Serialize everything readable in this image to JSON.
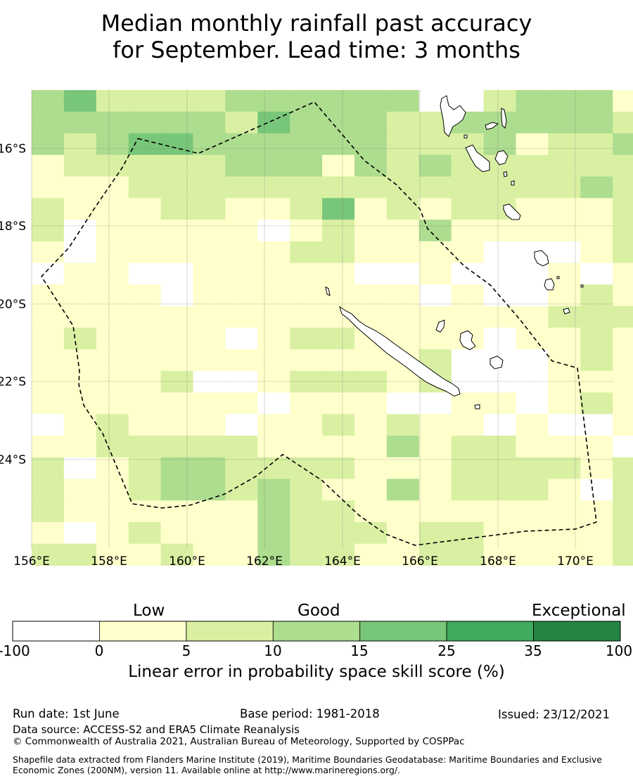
{
  "title": {
    "line1": "Median monthly rainfall past accuracy",
    "line2": "for September. Lead time: 3 months"
  },
  "map": {
    "x_ticks": [
      "156°E",
      "158°E",
      "160°E",
      "162°E",
      "164°E",
      "166°E",
      "168°E",
      "170°E"
    ],
    "y_ticks": [
      "16°S",
      "18°S",
      "20°S",
      "22°S",
      "24°S"
    ],
    "colors": [
      "#ffffff",
      "#ffffcc",
      "#d9f0a3",
      "#addd8e",
      "#78c679",
      "#41ab5d",
      "#238443"
    ],
    "grid": [
      [
        3,
        4,
        2,
        2,
        2,
        2,
        3,
        3,
        3,
        3,
        3,
        3,
        0,
        0,
        2,
        3,
        3,
        3,
        1
      ],
      [
        3,
        3,
        3,
        3,
        3,
        3,
        2,
        4,
        3,
        3,
        3,
        2,
        2,
        3,
        3,
        3,
        3,
        3,
        2
      ],
      [
        3,
        2,
        3,
        4,
        4,
        3,
        3,
        3,
        3,
        3,
        3,
        2,
        2,
        2,
        3,
        1,
        2,
        2,
        3
      ],
      [
        1,
        2,
        2,
        2,
        2,
        2,
        3,
        3,
        3,
        1,
        3,
        2,
        3,
        2,
        2,
        2,
        2,
        2,
        2
      ],
      [
        1,
        1,
        1,
        2,
        2,
        2,
        2,
        2,
        2,
        2,
        2,
        2,
        2,
        2,
        2,
        2,
        2,
        3,
        2
      ],
      [
        2,
        1,
        1,
        1,
        2,
        2,
        1,
        1,
        2,
        4,
        1,
        2,
        1,
        2,
        2,
        1,
        1,
        1,
        2
      ],
      [
        2,
        0,
        1,
        1,
        1,
        1,
        1,
        0,
        1,
        2,
        1,
        1,
        3,
        1,
        1,
        1,
        1,
        1,
        2
      ],
      [
        1,
        0,
        1,
        1,
        1,
        1,
        1,
        1,
        2,
        2,
        1,
        1,
        1,
        1,
        0,
        0,
        0,
        1,
        2
      ],
      [
        0,
        1,
        1,
        0,
        0,
        1,
        1,
        1,
        1,
        1,
        0,
        0,
        1,
        0,
        0,
        0,
        1,
        0,
        1
      ],
      [
        1,
        1,
        1,
        1,
        0,
        1,
        1,
        1,
        1,
        1,
        1,
        1,
        0,
        1,
        0,
        0,
        1,
        2,
        1
      ],
      [
        1,
        1,
        1,
        1,
        1,
        1,
        1,
        1,
        1,
        1,
        1,
        1,
        1,
        1,
        1,
        1,
        2,
        2,
        2
      ],
      [
        1,
        2,
        1,
        1,
        1,
        1,
        0,
        1,
        2,
        2,
        1,
        1,
        1,
        1,
        0,
        1,
        1,
        2,
        1
      ],
      [
        1,
        1,
        1,
        1,
        1,
        1,
        1,
        1,
        1,
        1,
        1,
        1,
        2,
        0,
        0,
        0,
        1,
        2,
        1
      ],
      [
        1,
        1,
        1,
        1,
        2,
        0,
        0,
        1,
        2,
        2,
        2,
        1,
        2,
        0,
        0,
        0,
        1,
        1,
        1
      ],
      [
        1,
        1,
        1,
        1,
        1,
        1,
        1,
        0,
        1,
        1,
        1,
        0,
        0,
        1,
        1,
        0,
        1,
        2,
        1
      ],
      [
        0,
        1,
        2,
        1,
        1,
        1,
        0,
        1,
        1,
        2,
        1,
        2,
        1,
        1,
        0,
        1,
        0,
        0,
        1
      ],
      [
        1,
        1,
        2,
        2,
        2,
        2,
        2,
        1,
        1,
        1,
        1,
        3,
        1,
        2,
        2,
        1,
        1,
        1,
        0
      ],
      [
        2,
        0,
        1,
        2,
        3,
        3,
        2,
        2,
        2,
        2,
        1,
        1,
        1,
        2,
        2,
        2,
        2,
        1,
        2
      ],
      [
        2,
        1,
        1,
        2,
        3,
        3,
        2,
        3,
        2,
        1,
        1,
        3,
        1,
        2,
        2,
        2,
        1,
        0,
        2
      ],
      [
        2,
        1,
        1,
        1,
        1,
        1,
        1,
        3,
        2,
        2,
        1,
        1,
        1,
        1,
        1,
        1,
        1,
        1,
        2
      ],
      [
        1,
        0,
        1,
        2,
        1,
        1,
        1,
        3,
        2,
        2,
        2,
        1,
        2,
        2,
        1,
        1,
        1,
        1,
        2
      ],
      [
        2,
        2,
        1,
        1,
        2,
        1,
        1,
        3,
        2,
        2,
        1,
        1,
        2,
        2,
        1,
        1,
        1,
        1,
        2
      ]
    ]
  },
  "colorbar": {
    "level_labels": [
      "Low",
      "Good",
      "Exceptional"
    ],
    "ticks": [
      "-100",
      "0",
      "5",
      "10",
      "15",
      "25",
      "35",
      "100"
    ],
    "colors": [
      "#ffffff",
      "#ffffcc",
      "#d9f0a3",
      "#addd8e",
      "#78c679",
      "#41ab5d",
      "#238443"
    ],
    "title": "Linear error in probability space skill score (%)"
  },
  "footer": {
    "run_date": "Run date: 1st June",
    "base_period": "Base period: 1981-2018",
    "issued": "Issued: 23/12/2021",
    "data_source": "Data source: ACCESS-S2 and ERA5 Climate Reanalysis",
    "copyright": "© Commonwealth of Australia 2021, Australian Bureau of Meteorology, Supported by COSPPac",
    "shapefile": "Shapefile data extracted from Flanders Marine Institute (2019), Maritime Boundaries Geodatabase: Maritime Boundaries and Exclusive Economic Zones (200NM), version 11. Available online at http://www.marineregions.org/."
  }
}
